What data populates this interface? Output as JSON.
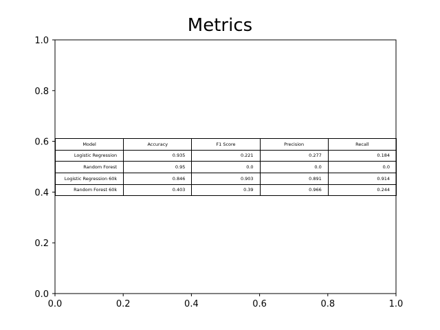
{
  "chart_data": {
    "type": "table",
    "title": "Metrics",
    "xlabel": "",
    "ylabel": "",
    "xlim": [
      0.0,
      1.0
    ],
    "ylim": [
      0.0,
      1.0
    ],
    "x_ticks": [
      "0.0",
      "0.2",
      "0.4",
      "0.6",
      "0.8",
      "1.0"
    ],
    "y_ticks": [
      "0.0",
      "0.2",
      "0.4",
      "0.6",
      "0.8",
      "1.0"
    ],
    "grid": false,
    "table": {
      "columns": [
        "Model",
        "Accuracy",
        "F1 Score",
        "Precision",
        "Recall"
      ],
      "rows": [
        [
          "Logistic Regression",
          "0.935",
          "0.221",
          "0.277",
          "0.184"
        ],
        [
          "Random Forest",
          "0.95",
          "0.0",
          "0.0",
          "0.0"
        ],
        [
          "Logistic Regression 60k",
          "0.846",
          "0.903",
          "0.891",
          "0.914"
        ],
        [
          "Random Forest 60k",
          "0.403",
          "0.39",
          "0.966",
          "0.244"
        ]
      ]
    }
  }
}
